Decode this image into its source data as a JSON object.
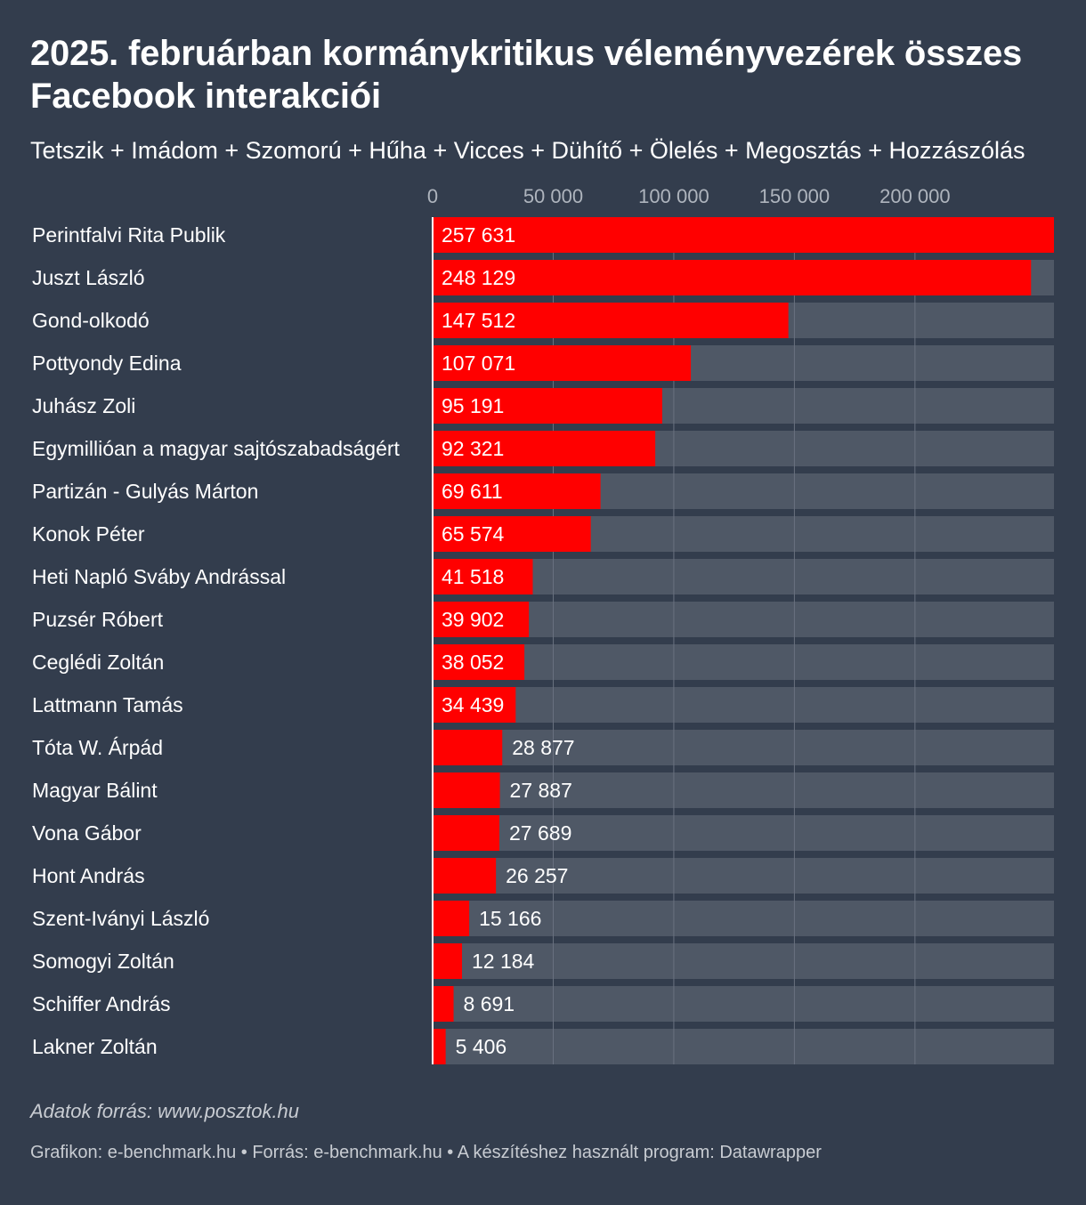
{
  "chart_data": {
    "type": "bar",
    "orientation": "horizontal",
    "title": "2025. februárban kormánykritikus véleményvezérek összes Facebook interakciói",
    "subtitle": "Tetszik + Imádom + Szomorú + Hűha + Vicces + Dühítő + Ölelés + Megosztás + Hozzászólás",
    "xlim": [
      0,
      257631
    ],
    "ticks": [
      0,
      50000,
      100000,
      150000,
      200000
    ],
    "tick_labels": [
      "0",
      "50 000",
      "100 000",
      "150 000",
      "200 000"
    ],
    "categories": [
      "Perintfalvi Rita Publik",
      "Juszt László",
      "Gond-olkodó",
      "Pottyondy Edina",
      "Juhász Zoli",
      "Egymillióan a magyar sajtószabadságért",
      "Partizán - Gulyás Márton",
      "Konok Péter",
      "Heti Napló Sváby Andrással",
      "Puzsér Róbert",
      "Ceglédi Zoltán",
      "Lattmann Tamás",
      "Tóta W. Árpád",
      "Magyar Bálint",
      "Vona Gábor",
      "Hont András",
      "Szent-Iványi László",
      "Somogyi Zoltán",
      "Schiffer András",
      "Lakner Zoltán"
    ],
    "values": [
      257631,
      248129,
      147512,
      107071,
      95191,
      92321,
      69611,
      65574,
      41518,
      39902,
      38052,
      34439,
      28877,
      27887,
      27689,
      26257,
      15166,
      12184,
      8691,
      5406
    ],
    "value_labels": [
      "257 631",
      "248 129",
      "147 512",
      "107 071",
      "95 191",
      "92 321",
      "69 611",
      "65 574",
      "41 518",
      "39 902",
      "38 052",
      "34 439",
      "28 877",
      "27 887",
      "27 689",
      "26 257",
      "15 166",
      "12 184",
      "8 691",
      "5 406"
    ],
    "grid": true,
    "colors": {
      "bar": "#ff0000",
      "track": "#4f5866",
      "background": "#333d4d",
      "grid": "#6a7280",
      "text": "#ffffff",
      "muted": "#c8ccd2"
    }
  },
  "notes": "Adatok forrás: www.posztok.hu",
  "footer": "Grafikon: e-benchmark.hu • Forrás: e-benchmark.hu • A készítéshez használt program: Datawrapper"
}
